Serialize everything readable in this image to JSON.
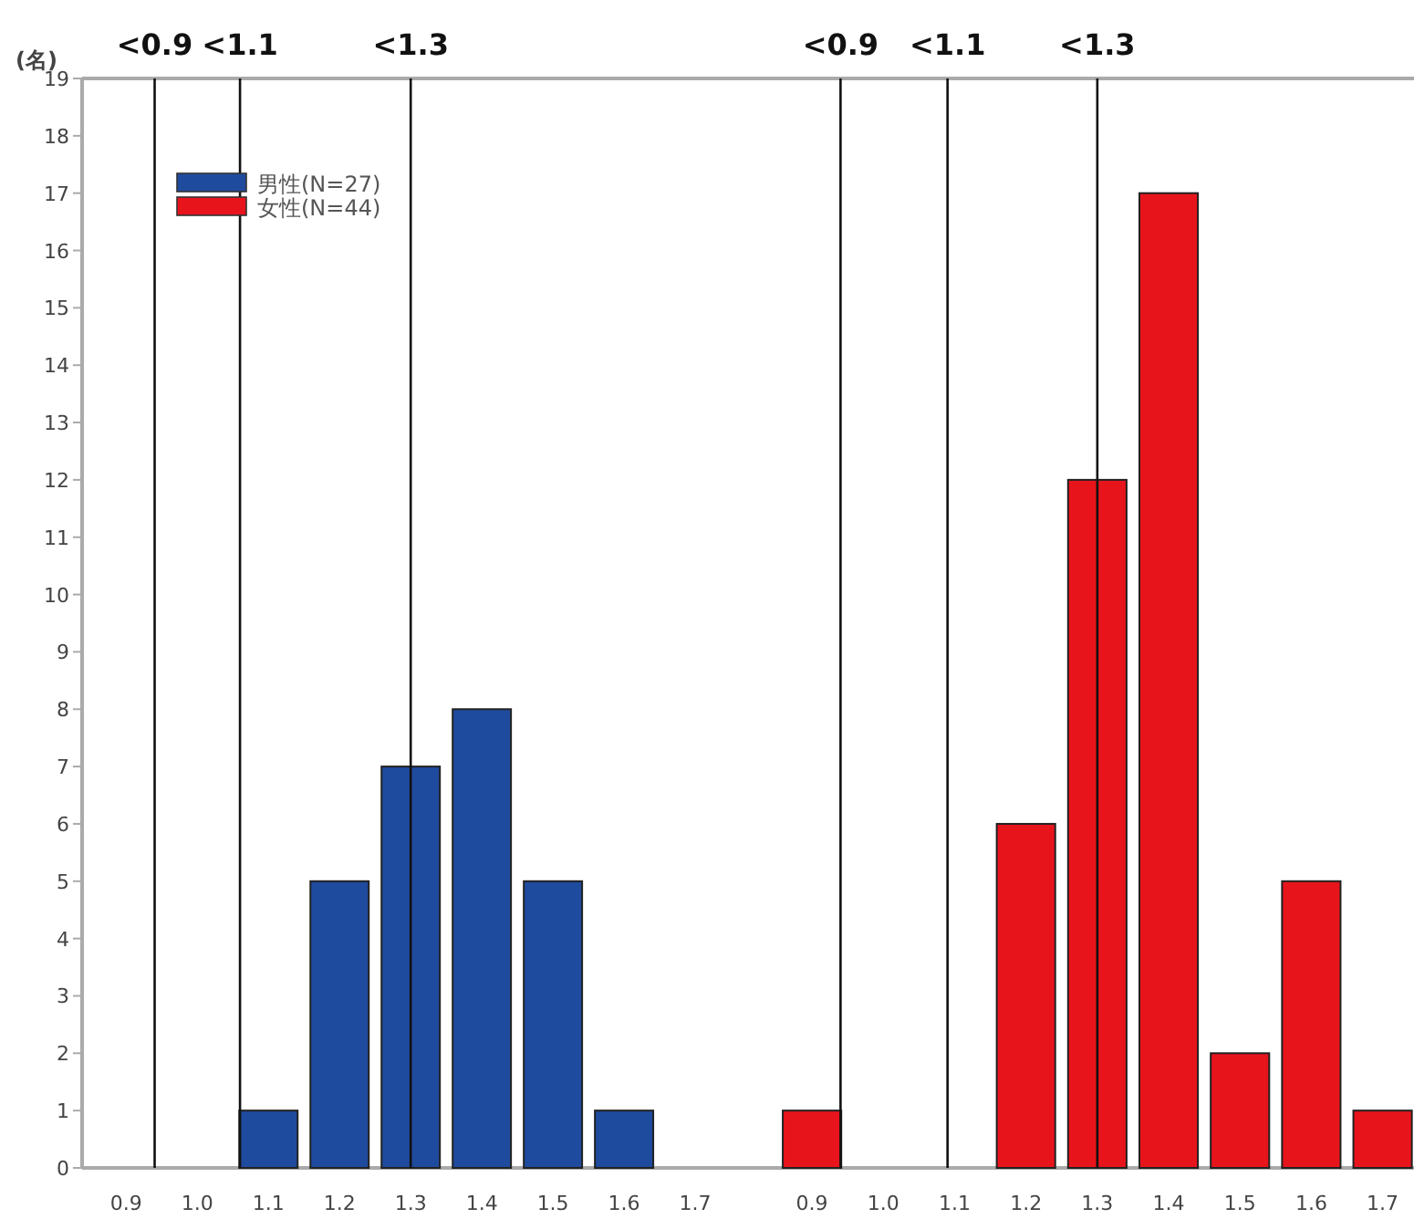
{
  "chart_data": [
    {
      "type": "bar",
      "ylabel": "(名)",
      "x": [
        0.9,
        1.0,
        1.1,
        1.2,
        1.3,
        1.4,
        1.5,
        1.6,
        1.7
      ],
      "xlim": [
        0.838,
        1.782
      ],
      "xticks": [
        {
          "value": 0.9,
          "label": "0.9"
        },
        {
          "value": 1.0,
          "label": "1.0"
        },
        {
          "value": 1.1,
          "label": "1.1"
        },
        {
          "value": 1.2,
          "label": "1.2"
        },
        {
          "value": 1.3,
          "label": "1.3"
        },
        {
          "value": 1.4,
          "label": "1.4"
        },
        {
          "value": 1.5,
          "label": "1.5"
        },
        {
          "value": 1.6,
          "label": "1.6"
        },
        {
          "value": 1.7,
          "label": "1.7"
        }
      ],
      "ylim": [
        0,
        19
      ],
      "yticks": [
        0,
        1,
        2,
        3,
        4,
        5,
        6,
        7,
        8,
        9,
        10,
        11,
        12,
        13,
        14,
        15,
        16,
        17,
        18,
        19
      ],
      "series": [
        {
          "name": "男性(N=27)",
          "color": "#1f4b9e",
          "values": [
            0,
            0,
            1,
            5,
            7,
            8,
            5,
            1,
            0
          ]
        },
        {
          "name": "女性(N=44)",
          "color": "#e8141c",
          "values": [
            null,
            null,
            null,
            null,
            null,
            null,
            null,
            null,
            null
          ]
        }
      ],
      "ref_lines": [
        {
          "axis": "x",
          "value": 0.94,
          "label": "<0.9"
        },
        {
          "axis": "x",
          "value": 1.06,
          "label": "<1.1"
        },
        {
          "axis": "x",
          "value": 1.3,
          "label": "<1.3"
        }
      ],
      "legend": "top left",
      "grid": false
    },
    {
      "type": "bar",
      "x": [
        0.9,
        1.0,
        1.1,
        1.2,
        1.3,
        1.4,
        1.5,
        1.6,
        1.7
      ],
      "xlim": [
        0.818,
        1.744
      ],
      "xticks": [
        {
          "value": 0.9,
          "label": "0.9"
        },
        {
          "value": 1.0,
          "label": "1.0"
        },
        {
          "value": 1.1,
          "label": "1.1"
        },
        {
          "value": 1.2,
          "label": "1.2"
        },
        {
          "value": 1.3,
          "label": "1.3"
        },
        {
          "value": 1.4,
          "label": "1.4"
        },
        {
          "value": 1.5,
          "label": "1.5"
        },
        {
          "value": 1.6,
          "label": "1.6"
        },
        {
          "value": 1.7,
          "label": "1.7"
        }
      ],
      "ylim": [
        0,
        19
      ],
      "tick_labels": "x",
      "series": [
        {
          "color": "#e8141c",
          "values": [
            1,
            0,
            0,
            6,
            12,
            17,
            2,
            5,
            1
          ]
        }
      ],
      "ref_lines": [
        {
          "axis": "x",
          "value": 0.94,
          "label": "<0.9"
        },
        {
          "axis": "x",
          "value": 1.09,
          "label": "<1.1"
        },
        {
          "axis": "x",
          "value": 1.3,
          "label": "<1.3"
        }
      ],
      "grid": false
    }
  ]
}
